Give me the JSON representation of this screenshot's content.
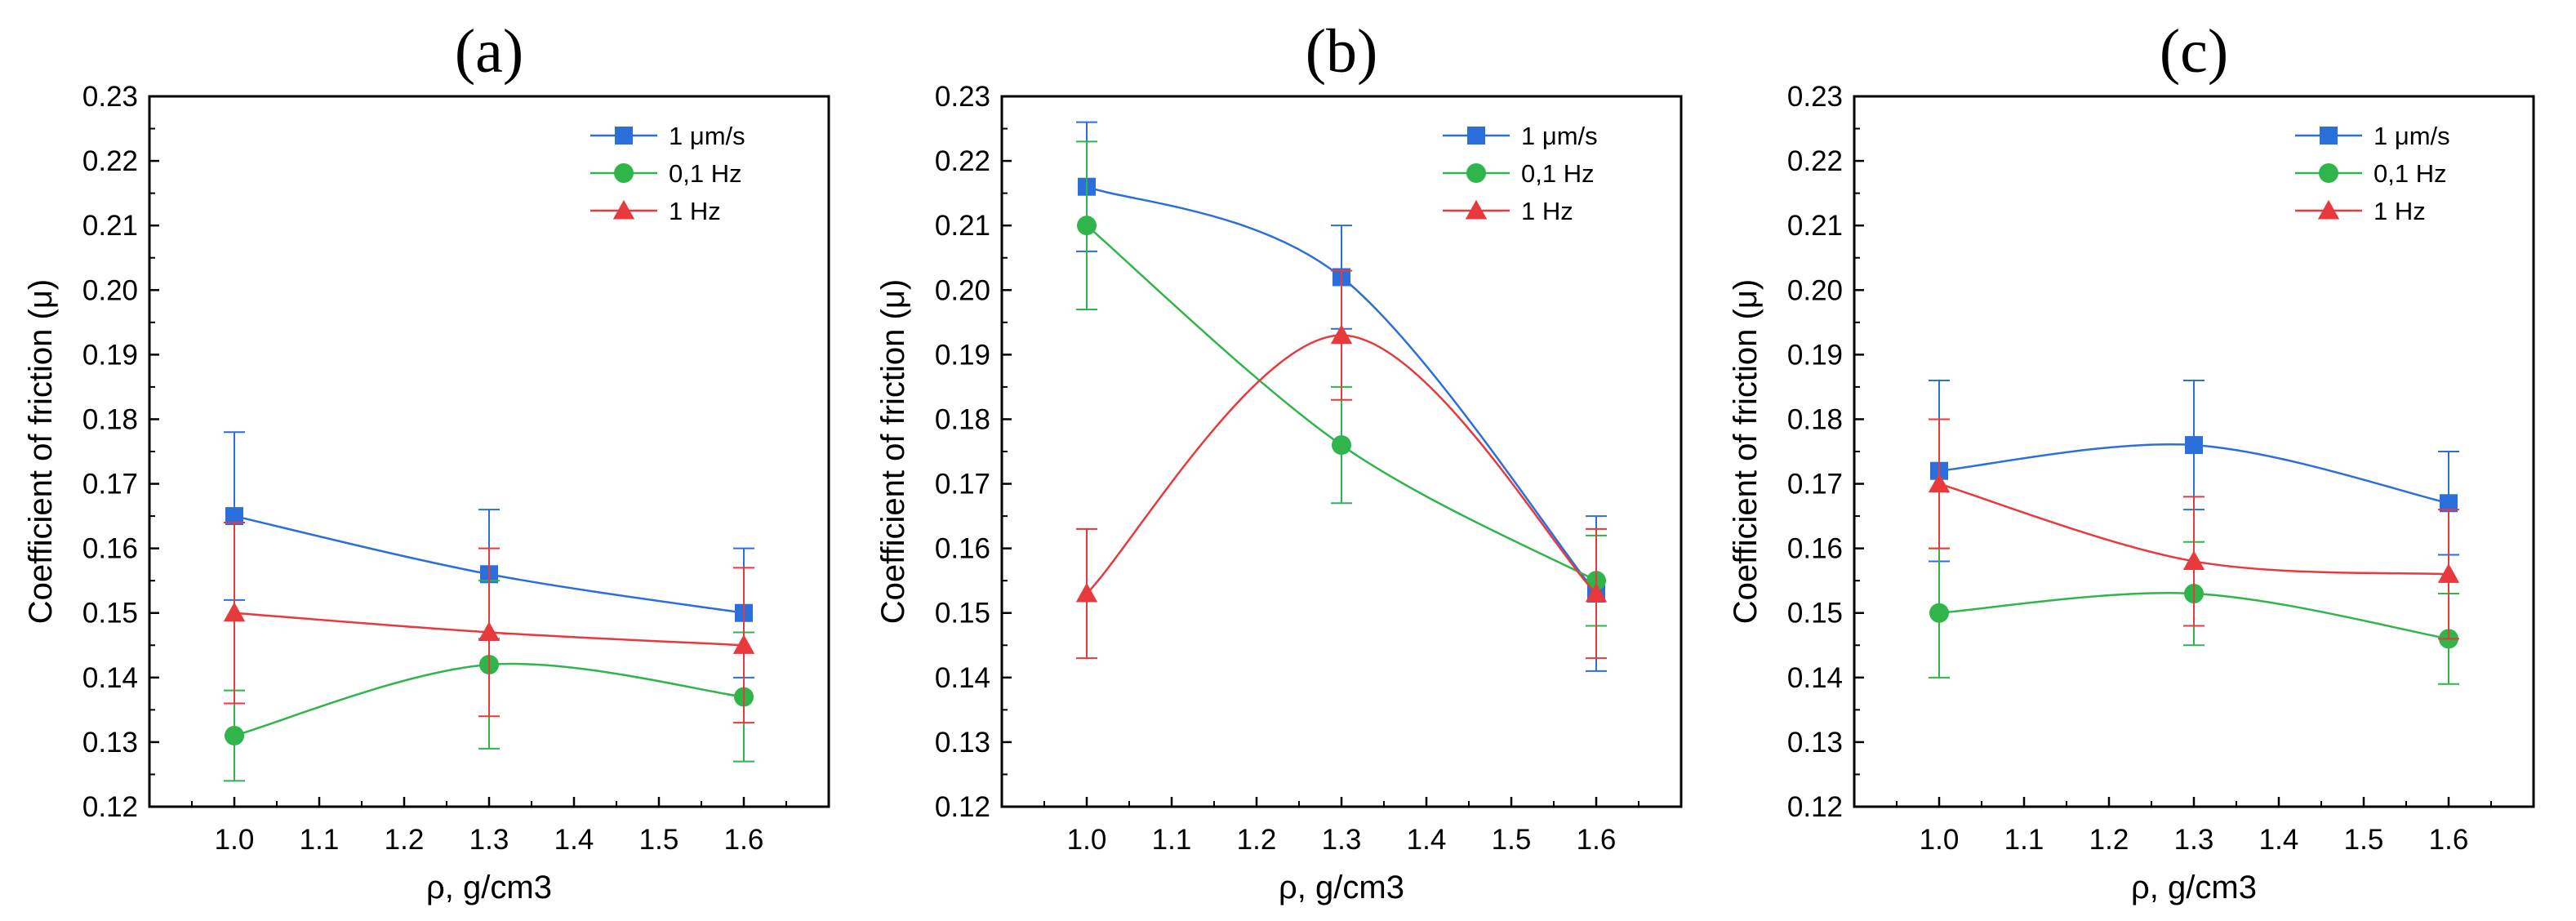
{
  "figure": {
    "panel_labels": [
      "(a)",
      "(b)",
      "(c)"
    ]
  },
  "chart_data": [
    {
      "type": "line",
      "title": "(a)",
      "xlabel": "ρ, g/cm3",
      "ylabel": "Coefficient of friction (μ)",
      "xlim": [
        0.9,
        1.7
      ],
      "ylim": [
        0.12,
        0.23
      ],
      "xticks": [
        "1.0",
        "1.1",
        "1.2",
        "1.3",
        "1.4",
        "1.5",
        "1.6"
      ],
      "yticks": [
        "0.12",
        "0.13",
        "0.14",
        "0.15",
        "0.16",
        "0.17",
        "0.18",
        "0.19",
        "0.20",
        "0.21",
        "0.22",
        "0.23"
      ],
      "x": [
        1.0,
        1.3,
        1.6
      ],
      "legend_position": "top-right",
      "series": [
        {
          "name": "1 μm/s",
          "color": "#2b6fdc",
          "marker": "square",
          "values": [
            0.165,
            0.156,
            0.15
          ],
          "errors": [
            0.013,
            0.01,
            0.01
          ]
        },
        {
          "name": "0,1 Hz",
          "color": "#2fb54a",
          "marker": "circle",
          "values": [
            0.131,
            0.142,
            0.137
          ],
          "errors": [
            0.007,
            0.013,
            0.01
          ]
        },
        {
          "name": "1 Hz",
          "color": "#e8393c",
          "marker": "triangle",
          "values": [
            0.15,
            0.147,
            0.145
          ],
          "errors": [
            0.014,
            0.013,
            0.012
          ]
        }
      ]
    },
    {
      "type": "line",
      "title": "(b)",
      "xlabel": "ρ, g/cm3",
      "ylabel": "Coefficient of friction (μ)",
      "xlim": [
        0.9,
        1.7
      ],
      "ylim": [
        0.12,
        0.23
      ],
      "xticks": [
        "1.0",
        "1.1",
        "1.2",
        "1.3",
        "1.4",
        "1.5",
        "1.6"
      ],
      "yticks": [
        "0.12",
        "0.13",
        "0.14",
        "0.15",
        "0.16",
        "0.17",
        "0.18",
        "0.19",
        "0.20",
        "0.21",
        "0.22",
        "0.23"
      ],
      "x": [
        1.0,
        1.3,
        1.6
      ],
      "legend_position": "top-right",
      "series": [
        {
          "name": "1 μm/s",
          "color": "#2b6fdc",
          "marker": "square",
          "values": [
            0.216,
            0.202,
            0.153
          ],
          "errors": [
            0.01,
            0.008,
            0.012
          ]
        },
        {
          "name": "0,1 Hz",
          "color": "#2fb54a",
          "marker": "circle",
          "values": [
            0.21,
            0.176,
            0.155
          ],
          "errors": [
            0.013,
            0.009,
            0.007
          ]
        },
        {
          "name": "1 Hz",
          "color": "#e8393c",
          "marker": "triangle",
          "values": [
            0.153,
            0.193,
            0.153
          ],
          "errors": [
            0.01,
            0.01,
            0.01
          ]
        }
      ]
    },
    {
      "type": "line",
      "title": "(c)",
      "xlabel": "ρ, g/cm3",
      "ylabel": "Coefficient of friction (μ)",
      "xlim": [
        0.9,
        1.7
      ],
      "ylim": [
        0.12,
        0.23
      ],
      "xticks": [
        "1.0",
        "1.1",
        "1.2",
        "1.3",
        "1.4",
        "1.5",
        "1.6"
      ],
      "yticks": [
        "0.12",
        "0.13",
        "0.14",
        "0.15",
        "0.16",
        "0.17",
        "0.18",
        "0.19",
        "0.20",
        "0.21",
        "0.22",
        "0.23"
      ],
      "x": [
        1.0,
        1.3,
        1.6
      ],
      "legend_position": "top-right",
      "series": [
        {
          "name": "1 μm/s",
          "color": "#2b6fdc",
          "marker": "square",
          "values": [
            0.172,
            0.176,
            0.167
          ],
          "errors": [
            0.014,
            0.01,
            0.008
          ]
        },
        {
          "name": "0,1 Hz",
          "color": "#2fb54a",
          "marker": "circle",
          "values": [
            0.15,
            0.153,
            0.146
          ],
          "errors": [
            0.01,
            0.008,
            0.007
          ]
        },
        {
          "name": "1 Hz",
          "color": "#e8393c",
          "marker": "triangle",
          "values": [
            0.17,
            0.158,
            0.156
          ],
          "errors": [
            0.01,
            0.01,
            0.01
          ]
        }
      ]
    }
  ]
}
